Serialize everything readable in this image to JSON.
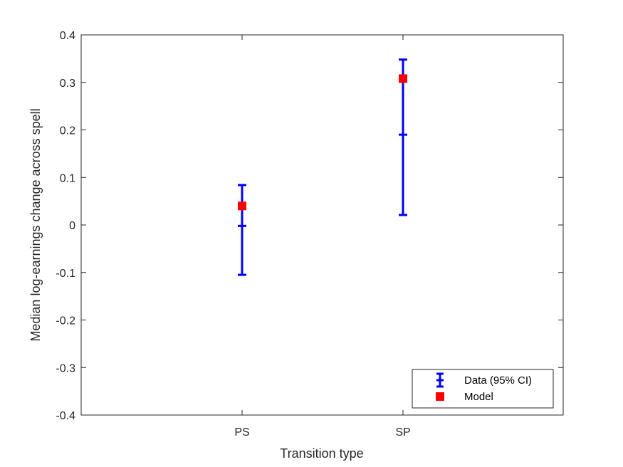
{
  "chart_data": {
    "type": "scatter",
    "xlabel": "Transition type",
    "ylabel": "Median log-earnings change across spell",
    "categories": [
      "PS",
      "SP"
    ],
    "ylim": [
      -0.4,
      0.4
    ],
    "yticks": [
      -0.4,
      -0.3,
      -0.2,
      -0.1,
      0,
      0.1,
      0.2,
      0.3,
      0.4
    ],
    "ytick_labels": [
      "-0.4",
      "-0.3",
      "-0.2",
      "-0.1",
      "0",
      "0.1",
      "0.2",
      "0.3",
      "0.4"
    ],
    "grid": false,
    "legend_position": "bottom-right",
    "series": [
      {
        "name": "Data (95% CI)",
        "kind": "errorbar",
        "color": "#0000ff",
        "values": [
          -0.002,
          0.19
        ],
        "lower": [
          -0.105,
          0.021
        ],
        "upper": [
          0.084,
          0.348
        ]
      },
      {
        "name": "Model",
        "kind": "marker",
        "color": "#ff0000",
        "values": [
          0.04,
          0.308
        ]
      }
    ]
  }
}
